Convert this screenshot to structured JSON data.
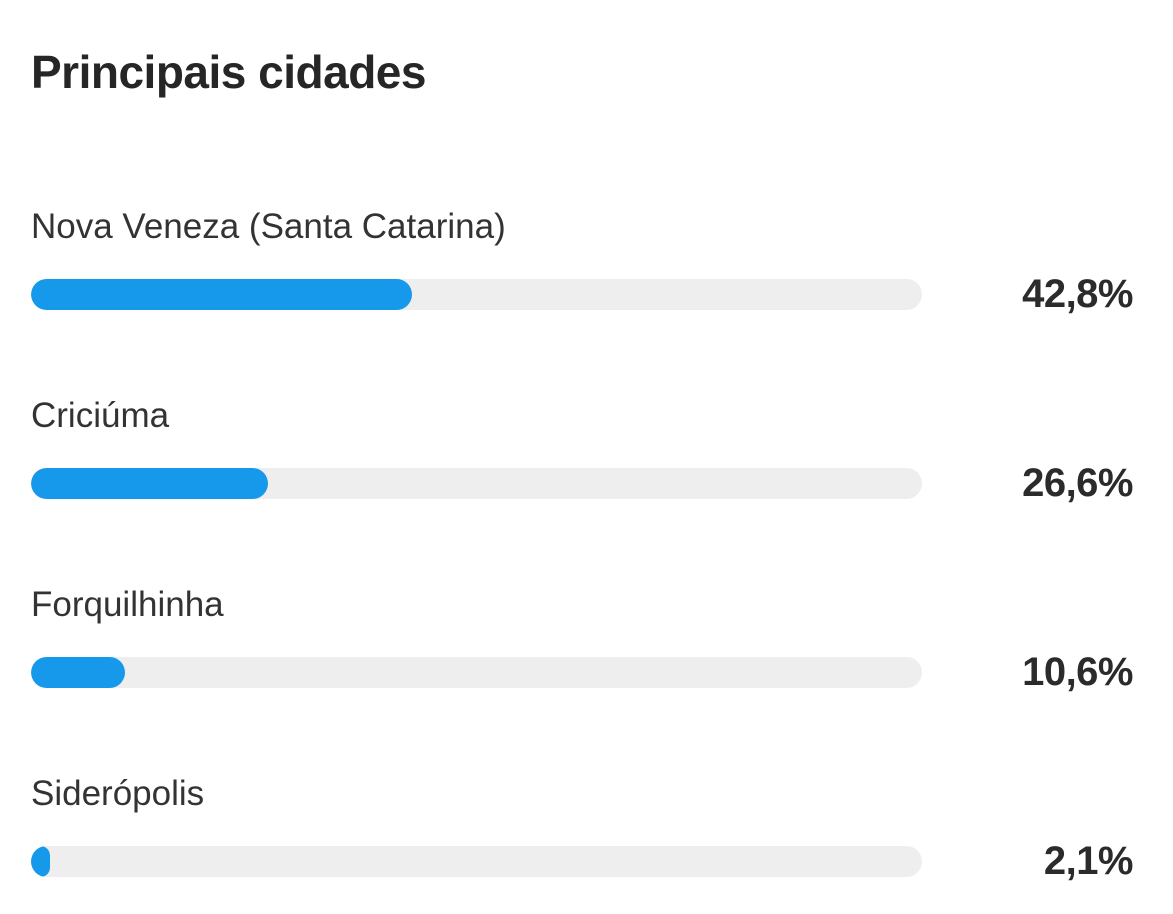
{
  "title": "Principais cidades",
  "colors": {
    "background": "#FFFFFF",
    "bar_fill": "#1799EB",
    "bar_track": "#EEEEEE",
    "title_text": "#262626",
    "label_text": "#333333",
    "value_text": "#2B2B2B"
  },
  "chart_data": {
    "type": "bar",
    "orientation": "horizontal",
    "title": "Principais cidades",
    "categories": [
      "Nova Veneza (Santa Catarina)",
      "Criciúma",
      "Forquilhinha",
      "Siderópolis"
    ],
    "values": [
      42.8,
      26.6,
      10.6,
      2.1
    ],
    "value_labels": [
      "42,8%",
      "26,6%",
      "10,6%",
      "2,1%"
    ],
    "unit": "%",
    "xlim": [
      0,
      100
    ],
    "grid": false,
    "legend": false
  }
}
